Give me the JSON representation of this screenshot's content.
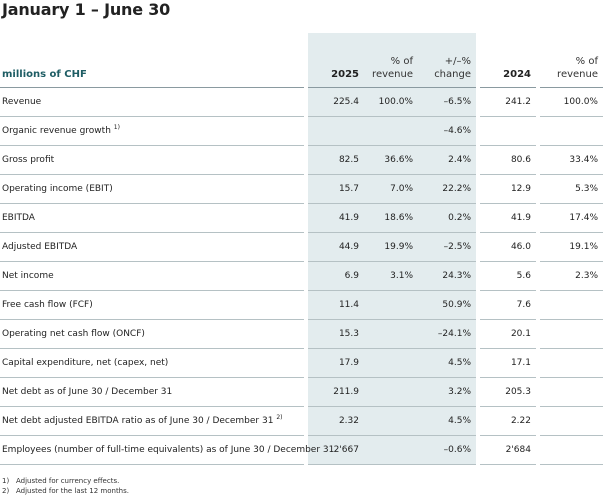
{
  "title": "January 1 – June 30",
  "header": {
    "label": "millions of CHF",
    "col_2025": "2025",
    "col_pct_1": "% of",
    "col_pct_2": "revenue",
    "col_chg_1": "+/–%",
    "col_chg_2": "change",
    "col_2024": "2024",
    "col_pct24_1": "% of",
    "col_pct24_2": "revenue"
  },
  "rows": [
    {
      "label": "Revenue",
      "note": "",
      "v2025": "225.4",
      "pct": "100.0%",
      "chg": "–6.5%",
      "v2024": "241.2",
      "pct24": "100.0%"
    },
    {
      "label": "Organic revenue growth",
      "note": "1)",
      "v2025": "",
      "pct": "",
      "chg": "–4.6%",
      "v2024": "",
      "pct24": ""
    },
    {
      "label": "Gross profit",
      "note": "",
      "v2025": "82.5",
      "pct": "36.6%",
      "chg": "2.4%",
      "v2024": "80.6",
      "pct24": "33.4%"
    },
    {
      "label": "Operating income (EBIT)",
      "note": "",
      "v2025": "15.7",
      "pct": "7.0%",
      "chg": "22.2%",
      "v2024": "12.9",
      "pct24": "5.3%"
    },
    {
      "label": "EBITDA",
      "note": "",
      "v2025": "41.9",
      "pct": "18.6%",
      "chg": "0.2%",
      "v2024": "41.9",
      "pct24": "17.4%"
    },
    {
      "label": "Adjusted EBITDA",
      "note": "",
      "v2025": "44.9",
      "pct": "19.9%",
      "chg": "–2.5%",
      "v2024": "46.0",
      "pct24": "19.1%"
    },
    {
      "label": "Net income",
      "note": "",
      "v2025": "6.9",
      "pct": "3.1%",
      "chg": "24.3%",
      "v2024": "5.6",
      "pct24": "2.3%"
    },
    {
      "label": "Free cash flow (FCF)",
      "note": "",
      "v2025": "11.4",
      "pct": "",
      "chg": "50.9%",
      "v2024": "7.6",
      "pct24": ""
    },
    {
      "label": "Operating net cash flow (ONCF)",
      "note": "",
      "v2025": "15.3",
      "pct": "",
      "chg": "–24.1%",
      "v2024": "20.1",
      "pct24": ""
    },
    {
      "label": "Capital expenditure, net (capex, net)",
      "note": "",
      "v2025": "17.9",
      "pct": "",
      "chg": "4.5%",
      "v2024": "17.1",
      "pct24": ""
    },
    {
      "label": "Net debt as of June 30 / December 31",
      "note": "",
      "v2025": "211.9",
      "pct": "",
      "chg": "3.2%",
      "v2024": "205.3",
      "pct24": ""
    },
    {
      "label": "Net debt adjusted EBITDA ratio as of June 30 / December 31",
      "note": "2)",
      "v2025": "2.32",
      "pct": "",
      "chg": "4.5%",
      "v2024": "2.22",
      "pct24": ""
    },
    {
      "label": "Employees (number of full-time equivalents) as of June 30 / December 31",
      "note": "",
      "v2025": "2'667",
      "pct": "",
      "chg": "–0.6%",
      "v2024": "2'684",
      "pct24": ""
    }
  ],
  "footnotes": [
    {
      "num": "1)",
      "text": "Adjusted for currency effects."
    },
    {
      "num": "2)",
      "text": "Adjusted for the last 12 months."
    }
  ],
  "colors": {
    "shade": "#e3ecee",
    "label_header": "#1e5d64",
    "rule": "#b5c1c4"
  }
}
